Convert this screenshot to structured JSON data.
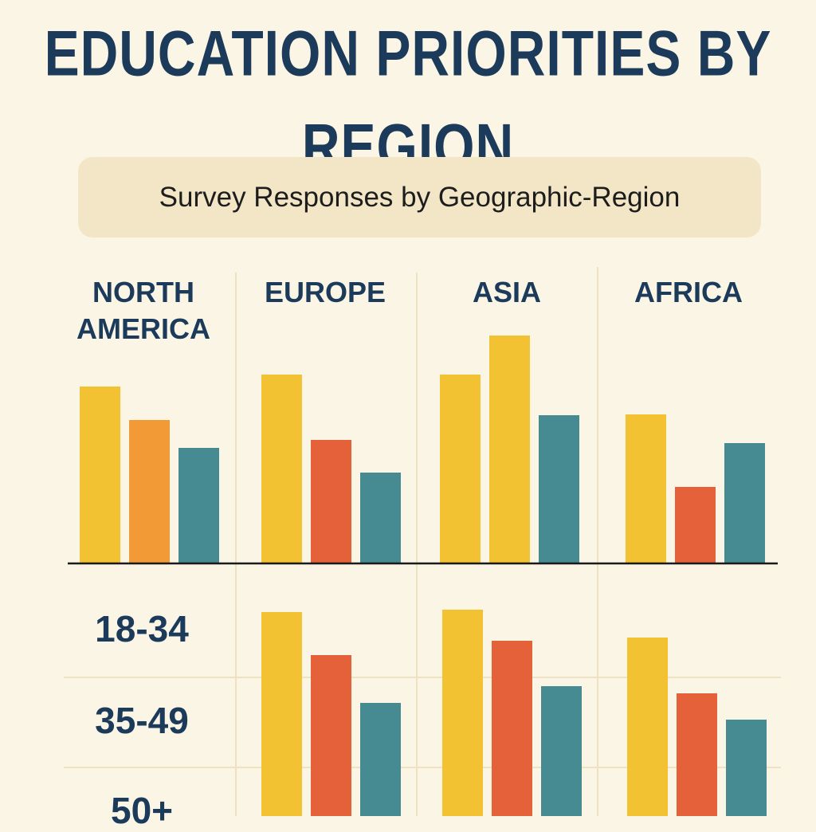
{
  "chart_data": [
    {
      "type": "bar",
      "title": "EDUCATION PRIORITIES BY REGION",
      "subtitle": "Survey Responses by Geographic-Region",
      "categories": [
        "NORTH AMERICA",
        "EUROPE",
        "ASIA",
        "AFRICA"
      ],
      "groups": [
        {
          "values": [
            222,
            180,
            145
          ],
          "colors": [
            "#f2c232",
            "#f29a35",
            "#468b92"
          ]
        },
        {
          "values": [
            237,
            155,
            114
          ],
          "colors": [
            "#f2c232",
            "#e4613a",
            "#468b92"
          ]
        },
        {
          "values": [
            237,
            286,
            186
          ],
          "colors": [
            "#f2c232",
            "#f2c232",
            "#468b92"
          ]
        },
        {
          "values": [
            187,
            96,
            151
          ],
          "colors": [
            "#f2c232",
            "#e4613a",
            "#468b92"
          ]
        }
      ]
    },
    {
      "type": "bar",
      "row_labels": [
        "18-34",
        "35-49",
        "50+"
      ],
      "groups": [
        {
          "values": [
            256,
            202,
            142
          ],
          "colors": [
            "#f2c232",
            "#e4613a",
            "#468b92"
          ]
        },
        {
          "values": [
            259,
            220,
            163
          ],
          "colors": [
            "#f2c232",
            "#e4613a",
            "#468b92"
          ]
        },
        {
          "values": [
            224,
            154,
            121
          ],
          "colors": [
            "#f2c232",
            "#e4613a",
            "#468b92"
          ]
        }
      ]
    }
  ]
}
